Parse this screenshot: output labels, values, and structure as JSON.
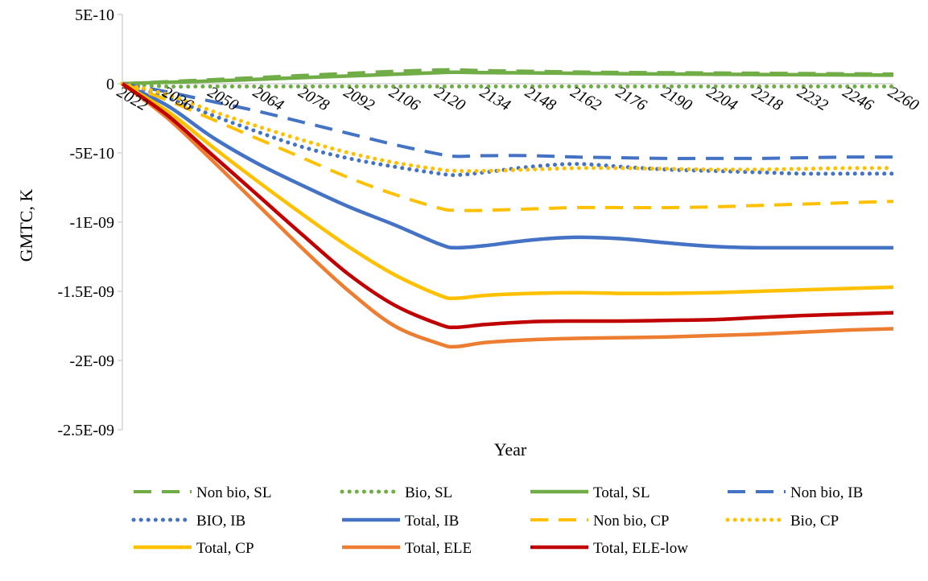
{
  "chart_data": {
    "type": "line",
    "xlabel": "Year",
    "ylabel": "GMTC, K",
    "ylim": [
      -2.5e-09,
      5e-10
    ],
    "yticks": [
      5e-10,
      0,
      -5e-10,
      -1e-09,
      -1.5e-09,
      -2e-09,
      -2.5e-09
    ],
    "ytick_labels": [
      "5E-10",
      "0",
      "-5E-10",
      "-1E-09",
      "-1.5E-09",
      "-2E-09",
      "-2.5E-09"
    ],
    "xlim": [
      2022,
      2260
    ],
    "xtick_labels": [
      "2022",
      "2036",
      "2050",
      "2064",
      "2078",
      "2092",
      "2106",
      "2120",
      "2134",
      "2148",
      "2162",
      "2176",
      "2190",
      "2204",
      "2218",
      "2232",
      "2246",
      "2260"
    ],
    "grid": false,
    "legend_position": "bottom",
    "series": [
      {
        "name": "Non bio, SL",
        "color": "#70AD47",
        "style": "dashed",
        "x": [
          2022,
          2036,
          2050,
          2064,
          2078,
          2092,
          2106,
          2120,
          2125,
          2134,
          2148,
          2162,
          2176,
          2190,
          2204,
          2218,
          2232,
          2246,
          2260
        ],
        "y": [
          0,
          1.5e-11,
          3e-11,
          4.5e-11,
          6e-11,
          7.5e-11,
          9e-11,
          1e-10,
          1e-10,
          9.5e-11,
          9e-11,
          8.5e-11,
          8.2e-11,
          8e-11,
          7.8e-11,
          7.6e-11,
          7.4e-11,
          7.2e-11,
          7e-11
        ]
      },
      {
        "name": "Bio, SL",
        "color": "#70AD47",
        "style": "dotted",
        "x": [
          2022,
          2036,
          2050,
          2078,
          2106,
          2134,
          2162,
          2190,
          2218,
          2246,
          2260
        ],
        "y": [
          0,
          -2e-11,
          -2e-11,
          -2e-11,
          -2e-11,
          -2e-11,
          -2e-11,
          -2e-11,
          -2e-11,
          -2e-11,
          -2e-11
        ]
      },
      {
        "name": "Total, SL",
        "color": "#70AD47",
        "style": "solid",
        "x": [
          2022,
          2036,
          2050,
          2064,
          2078,
          2092,
          2106,
          2120,
          2125,
          2134,
          2148,
          2162,
          2176,
          2190,
          2204,
          2218,
          2232,
          2246,
          2260
        ],
        "y": [
          0,
          1e-11,
          2e-11,
          3.2e-11,
          4.4e-11,
          5.6e-11,
          6.8e-11,
          8e-11,
          8.3e-11,
          8e-11,
          7.8e-11,
          7.5e-11,
          7.2e-11,
          7e-11,
          6.8e-11,
          6.6e-11,
          6.5e-11,
          6.3e-11,
          6.2e-11
        ]
      },
      {
        "name": "Non bio, IB",
        "color": "#4472C4",
        "style": "dashed",
        "x": [
          2022,
          2036,
          2050,
          2064,
          2078,
          2092,
          2106,
          2120,
          2125,
          2134,
          2148,
          2162,
          2176,
          2190,
          2204,
          2218,
          2232,
          2246,
          2260
        ],
        "y": [
          0,
          -6e-11,
          -1.3e-10,
          -2e-10,
          -2.8e-10,
          -3.6e-10,
          -4.4e-10,
          -5.1e-10,
          -5.25e-10,
          -5.2e-10,
          -5.2e-10,
          -5.3e-10,
          -5.35e-10,
          -5.4e-10,
          -5.4e-10,
          -5.4e-10,
          -5.35e-10,
          -5.3e-10,
          -5.3e-10
        ]
      },
      {
        "name": "BIO, IB",
        "color": "#4472C4",
        "style": "dotted",
        "x": [
          2022,
          2036,
          2050,
          2064,
          2078,
          2092,
          2106,
          2120,
          2125,
          2134,
          2148,
          2162,
          2176,
          2190,
          2204,
          2218,
          2232,
          2246,
          2260
        ],
        "y": [
          0,
          -1e-10,
          -2.3e-10,
          -3.5e-10,
          -4.6e-10,
          -5.4e-10,
          -6e-10,
          -6.5e-10,
          -6.6e-10,
          -6.4e-10,
          -6e-10,
          -5.8e-10,
          -6e-10,
          -6.2e-10,
          -6.3e-10,
          -6.4e-10,
          -6.5e-10,
          -6.5e-10,
          -6.5e-10
        ]
      },
      {
        "name": "Total, IB",
        "color": "#4472C4",
        "style": "solid",
        "x": [
          2022,
          2036,
          2050,
          2064,
          2078,
          2092,
          2106,
          2120,
          2125,
          2134,
          2148,
          2162,
          2176,
          2190,
          2204,
          2218,
          2232,
          2246,
          2260
        ],
        "y": [
          0,
          -1.6e-10,
          -3.9e-10,
          -5.8e-10,
          -7.4e-10,
          -8.9e-10,
          -1.02e-09,
          -1.16e-09,
          -1.185e-09,
          -1.17e-09,
          -1.13e-09,
          -1.11e-09,
          -1.12e-09,
          -1.15e-09,
          -1.175e-09,
          -1.185e-09,
          -1.185e-09,
          -1.185e-09,
          -1.185e-09
        ]
      },
      {
        "name": "Non bio, CP",
        "color": "#FFC000",
        "style": "dashed",
        "x": [
          2022,
          2036,
          2050,
          2064,
          2078,
          2092,
          2106,
          2120,
          2125,
          2134,
          2148,
          2162,
          2176,
          2190,
          2204,
          2218,
          2232,
          2246,
          2260
        ],
        "y": [
          0,
          -1.2e-10,
          -2.6e-10,
          -4e-10,
          -5.4e-10,
          -6.8e-10,
          -8e-10,
          -9e-10,
          -9.15e-10,
          -9.15e-10,
          -9.05e-10,
          -8.95e-10,
          -8.95e-10,
          -8.95e-10,
          -8.9e-10,
          -8.8e-10,
          -8.7e-10,
          -8.6e-10,
          -8.5e-10
        ]
      },
      {
        "name": "Bio, CP",
        "color": "#FFC000",
        "style": "dotted",
        "x": [
          2022,
          2036,
          2050,
          2064,
          2078,
          2092,
          2106,
          2120,
          2125,
          2134,
          2148,
          2162,
          2176,
          2190,
          2204,
          2218,
          2232,
          2246,
          2260
        ],
        "y": [
          0,
          -8e-11,
          -2e-10,
          -3.1e-10,
          -4.1e-10,
          -5e-10,
          -5.7e-10,
          -6.2e-10,
          -6.3e-10,
          -6.3e-10,
          -6.2e-10,
          -6.1e-10,
          -6.1e-10,
          -6.15e-10,
          -6.2e-10,
          -6.2e-10,
          -6.15e-10,
          -6.1e-10,
          -6.1e-10
        ]
      },
      {
        "name": "Total, CP",
        "color": "#FFC000",
        "style": "solid",
        "x": [
          2022,
          2036,
          2050,
          2064,
          2078,
          2092,
          2106,
          2120,
          2125,
          2134,
          2148,
          2162,
          2176,
          2190,
          2204,
          2218,
          2232,
          2246,
          2260
        ],
        "y": [
          0,
          -2e-10,
          -4.6e-10,
          -7.1e-10,
          -9.5e-10,
          -1.18e-09,
          -1.38e-09,
          -1.53e-09,
          -1.55e-09,
          -1.53e-09,
          -1.515e-09,
          -1.51e-09,
          -1.515e-09,
          -1.515e-09,
          -1.51e-09,
          -1.5e-09,
          -1.49e-09,
          -1.48e-09,
          -1.47e-09
        ]
      },
      {
        "name": "Total, ELE",
        "color": "#ED7D31",
        "style": "solid",
        "x": [
          2022,
          2036,
          2050,
          2064,
          2078,
          2092,
          2106,
          2120,
          2125,
          2134,
          2148,
          2162,
          2176,
          2190,
          2204,
          2218,
          2232,
          2246,
          2260
        ],
        "y": [
          0,
          -2.5e-10,
          -5.6e-10,
          -8.8e-10,
          -1.2e-09,
          -1.5e-09,
          -1.75e-09,
          -1.88e-09,
          -1.9e-09,
          -1.87e-09,
          -1.85e-09,
          -1.84e-09,
          -1.835e-09,
          -1.83e-09,
          -1.82e-09,
          -1.81e-09,
          -1.795e-09,
          -1.78e-09,
          -1.77e-09
        ]
      },
      {
        "name": "Total, ELE-low",
        "color": "#C00000",
        "style": "solid",
        "x": [
          2022,
          2036,
          2050,
          2064,
          2078,
          2092,
          2106,
          2120,
          2125,
          2134,
          2148,
          2162,
          2176,
          2190,
          2204,
          2218,
          2232,
          2246,
          2260
        ],
        "y": [
          0,
          -2.3e-10,
          -5.2e-10,
          -8.1e-10,
          -1.1e-09,
          -1.38e-09,
          -1.6e-09,
          -1.74e-09,
          -1.76e-09,
          -1.74e-09,
          -1.72e-09,
          -1.715e-09,
          -1.715e-09,
          -1.71e-09,
          -1.705e-09,
          -1.69e-09,
          -1.675e-09,
          -1.665e-09,
          -1.655e-09
        ]
      }
    ]
  }
}
